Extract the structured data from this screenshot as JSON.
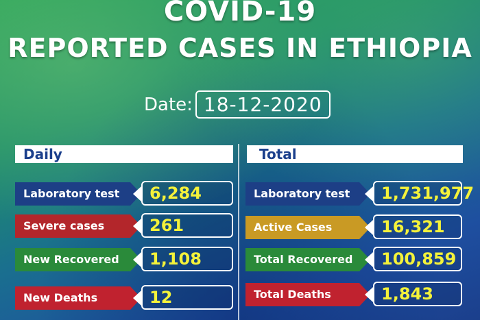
{
  "header": {
    "title_line1": "COVID-19",
    "title_line2": "REPORTED CASES IN ETHIOPIA"
  },
  "date": {
    "label": "Date:",
    "value": "18-12-2020"
  },
  "daily": {
    "heading": "Daily",
    "rows": [
      {
        "label": "Laboratory test",
        "value": "6,284",
        "color": "#1d3f86"
      },
      {
        "label": "Severe cases",
        "value": "261",
        "color": "#b3262b"
      },
      {
        "label": "New Recovered",
        "value": "1,108",
        "color": "#2a8a3a"
      },
      {
        "label": "New Deaths",
        "value": "12",
        "color": "#c0222f"
      }
    ]
  },
  "total": {
    "heading": "Total",
    "rows": [
      {
        "label": "Laboratory test",
        "value": "1,731,977",
        "color": "#1d3f86"
      },
      {
        "label": "Active Cases",
        "value": "16,321",
        "color": "#c99a24"
      },
      {
        "label": "Total Recovered",
        "value": "100,859",
        "color": "#2a8a3a"
      },
      {
        "label": "Total Deaths",
        "value": "1,843",
        "color": "#c0222f"
      }
    ]
  },
  "colors": {
    "value_text": "#f4f23a",
    "header_text": "#1b3f8c"
  }
}
